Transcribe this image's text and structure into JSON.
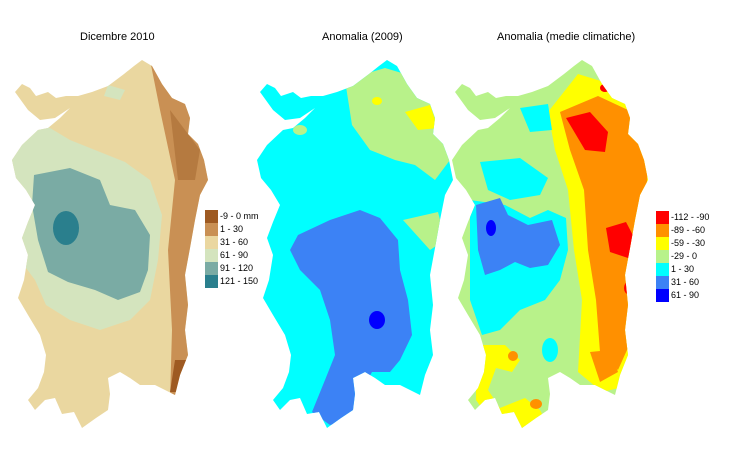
{
  "panels": [
    {
      "title": "Dicembre 2010",
      "legend": [
        {
          "label": "-9 - 0 mm",
          "color": "#9e5a22"
        },
        {
          "label": "1 - 30",
          "color": "#c99054"
        },
        {
          "label": "31 - 60",
          "color": "#ead7a0"
        },
        {
          "label": "61 - 90",
          "color": "#d4e4be"
        },
        {
          "label": "91 - 120",
          "color": "#7aaba4"
        },
        {
          "label": "121 - 150",
          "color": "#2a7f8d"
        }
      ]
    },
    {
      "title": "Anomalia (2009)"
    },
    {
      "title": "Anomalia (medie climatiche)",
      "legend": [
        {
          "label": "-112 - -90",
          "color": "#ff0000"
        },
        {
          "label": "-89 - -60",
          "color": "#ff9000"
        },
        {
          "label": "-59 - -30",
          "color": "#ffff00"
        },
        {
          "label": "-29 - 0",
          "color": "#b8f28a"
        },
        {
          "label": "1 - 30",
          "color": "#00ffff"
        },
        {
          "label": "31 - 60",
          "color": "#3c82f5"
        },
        {
          "label": "61 - 90",
          "color": "#0000ff"
        }
      ]
    }
  ]
}
